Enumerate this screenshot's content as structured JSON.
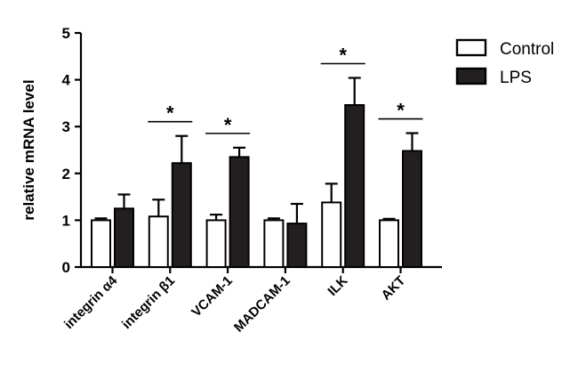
{
  "chart_data": {
    "type": "bar",
    "ylabel": "relative mRNA level",
    "xlabel": "",
    "ylim": [
      0,
      5
    ],
    "yticks": [
      0,
      1,
      2,
      3,
      4,
      5
    ],
    "categories": [
      "integrin α4",
      "integrin β1",
      "VCAM-1",
      "MADCAM-1",
      "ILK",
      "AKT"
    ],
    "series": [
      {
        "name": "Control",
        "fill": "#ffffff",
        "values": [
          1.0,
          1.08,
          1.0,
          1.0,
          1.38,
          1.0
        ],
        "errors": [
          0.04,
          0.36,
          0.12,
          0.04,
          0.4,
          0.03
        ]
      },
      {
        "name": "LPS",
        "fill": "#231f20",
        "values": [
          1.25,
          2.22,
          2.35,
          0.93,
          3.46,
          2.48
        ],
        "errors": [
          0.3,
          0.58,
          0.2,
          0.42,
          0.58,
          0.38
        ]
      }
    ],
    "significance": [
      "",
      "*",
      "*",
      "",
      "*",
      "*"
    ],
    "legend_position": "top-right",
    "grid": false
  }
}
